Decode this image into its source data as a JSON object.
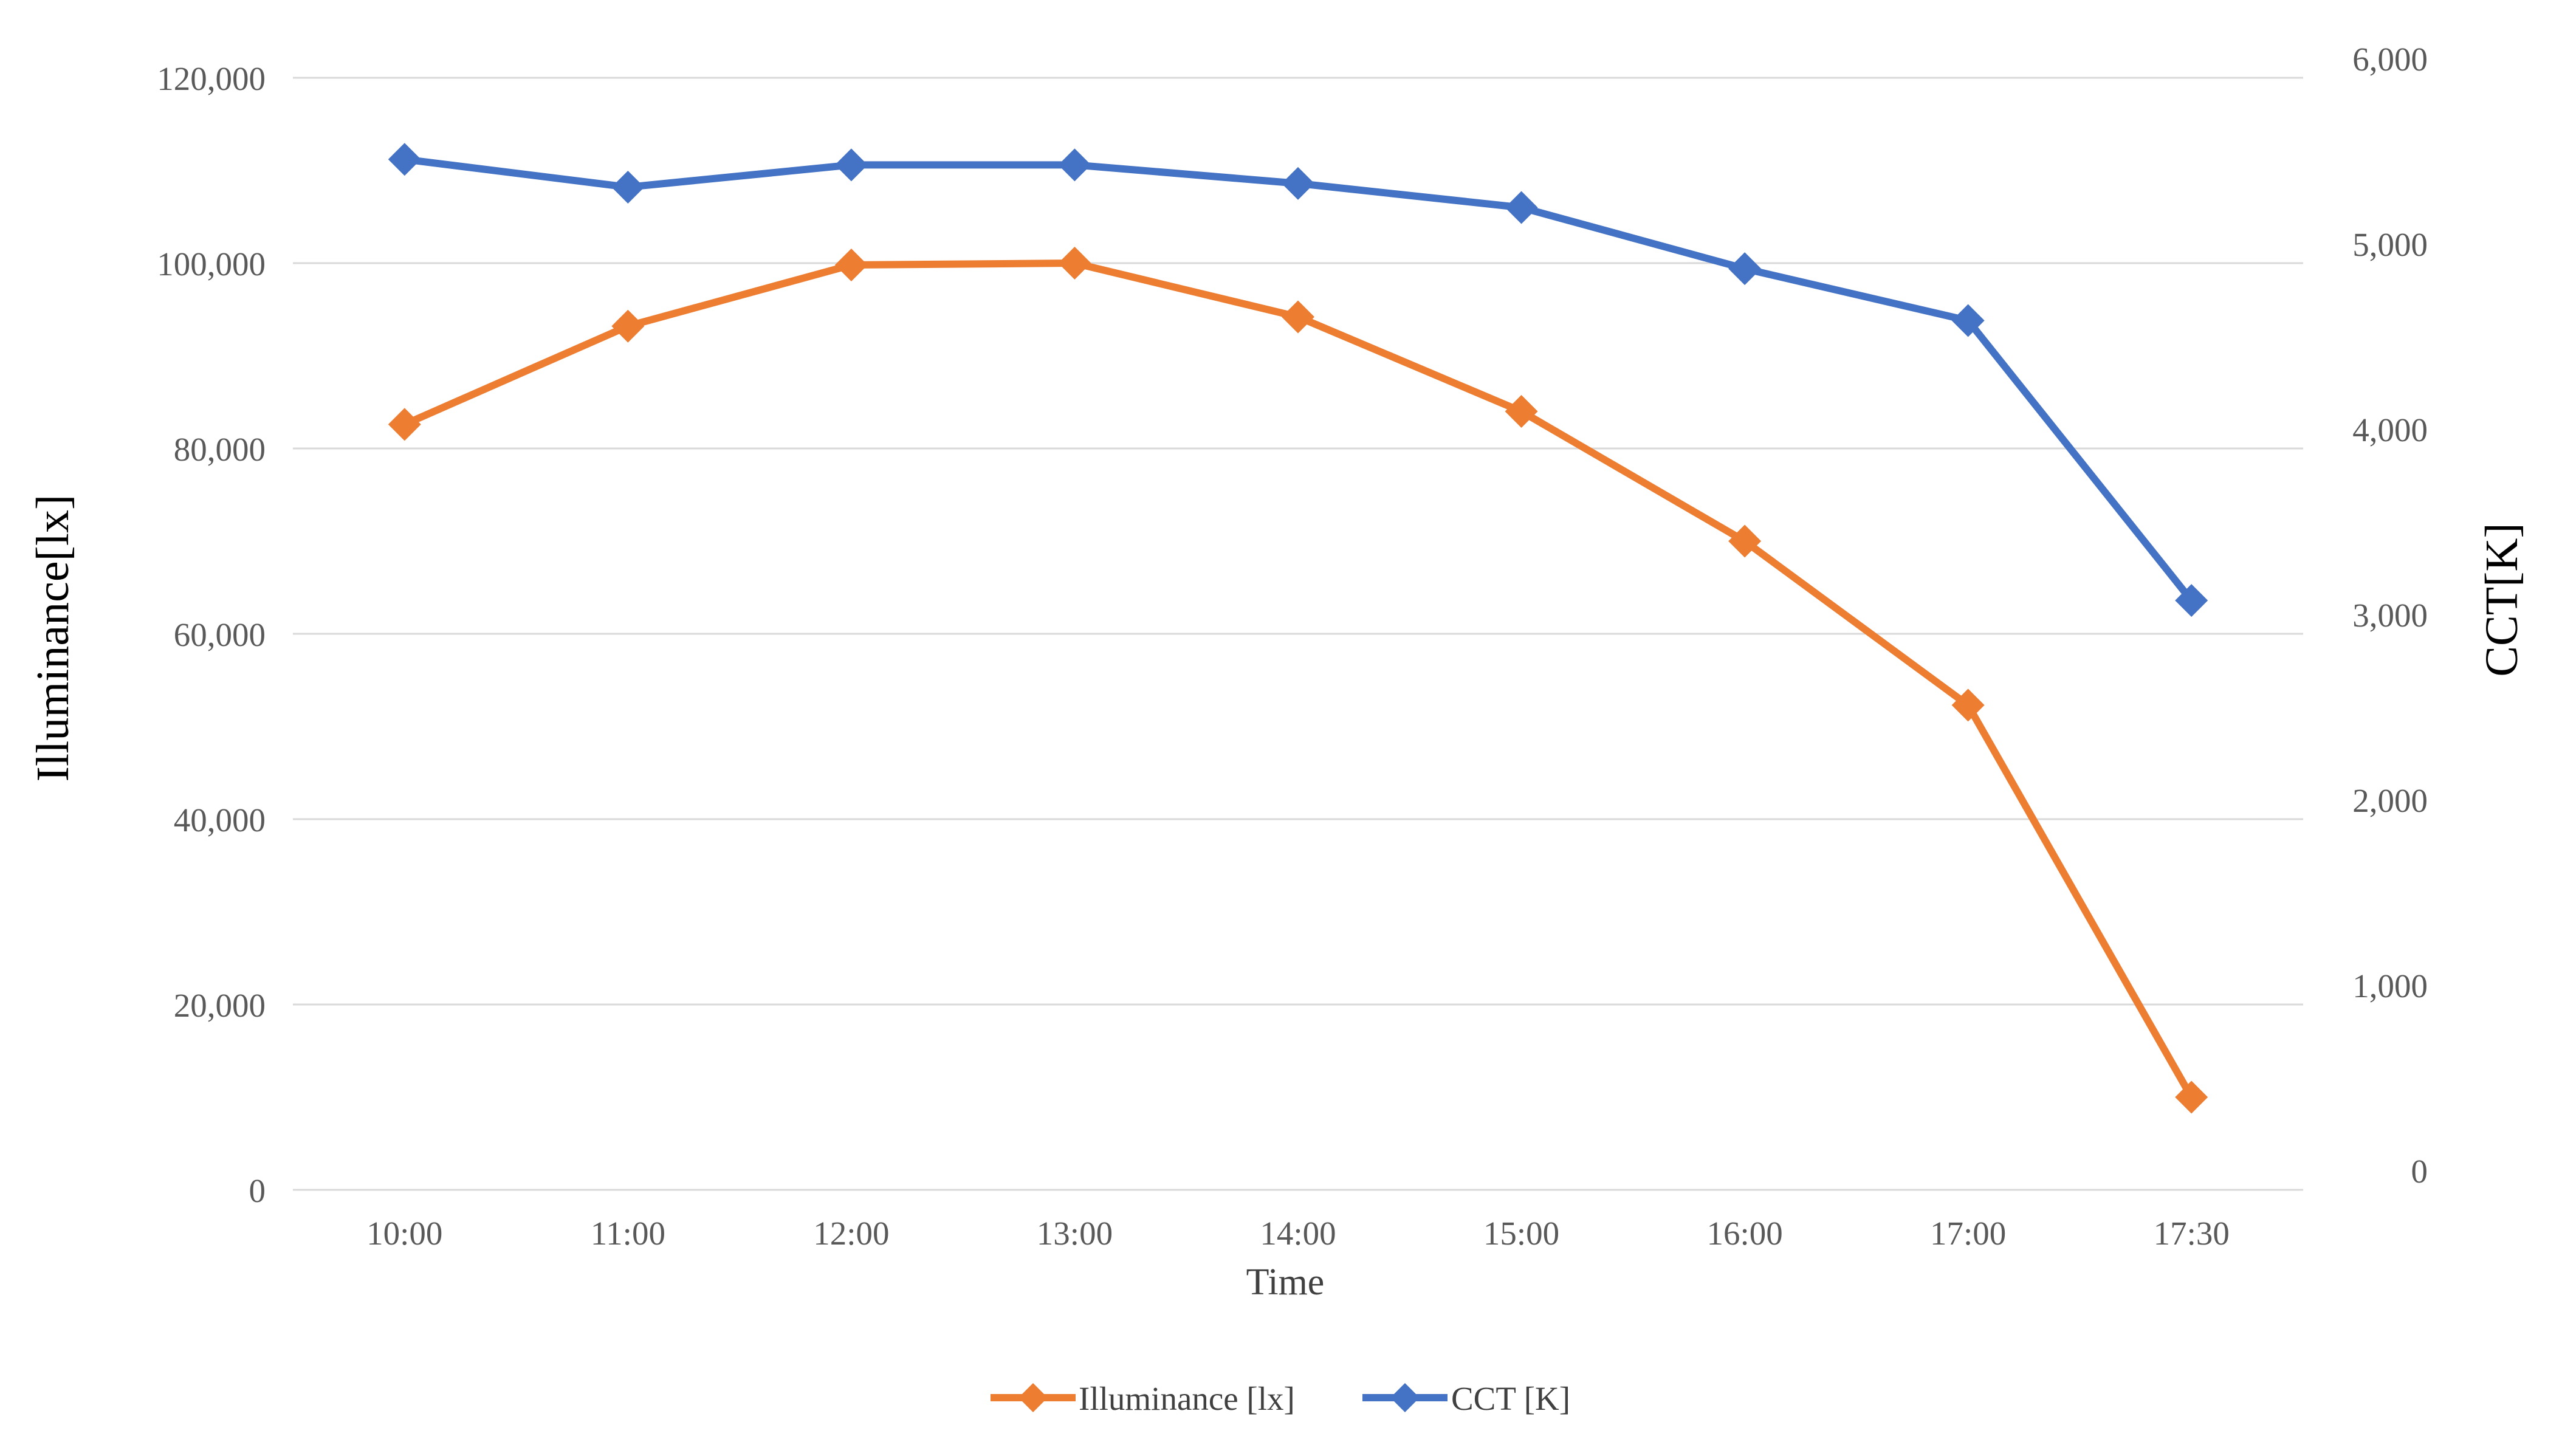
{
  "chart_data": {
    "type": "line",
    "categories": [
      "10:00",
      "11:00",
      "12:00",
      "13:00",
      "14:00",
      "15:00",
      "16:00",
      "17:00",
      "17:30"
    ],
    "xlabel": "Time",
    "ylabel_left": "Illuminance[lx]",
    "ylabel_right": "CCT[K]",
    "ylim_left": [
      0,
      120000
    ],
    "ylim_right": [
      0,
      6000
    ],
    "yticks_left": [
      "0",
      "20,000",
      "40,000",
      "60,000",
      "80,000",
      "100,000",
      "120,000"
    ],
    "yticks_right": [
      "0",
      "1,000",
      "2,000",
      "3,000",
      "4,000",
      "5,000",
      "6,000"
    ],
    "grid": true,
    "legend_position": "bottom",
    "series": [
      {
        "name": "Illuminance [lx]",
        "axis": "left",
        "color": "#ED7D31",
        "marker": "diamond",
        "values": [
          82600,
          93200,
          99800,
          100000,
          94200,
          84000,
          70000,
          52300,
          10000
        ]
      },
      {
        "name": "CCT [K]",
        "axis": "right",
        "color": "#4472C4",
        "marker": "diamond",
        "values": [
          5560,
          5410,
          5530,
          5530,
          5430,
          5300,
          4970,
          4690,
          3180
        ]
      }
    ]
  }
}
